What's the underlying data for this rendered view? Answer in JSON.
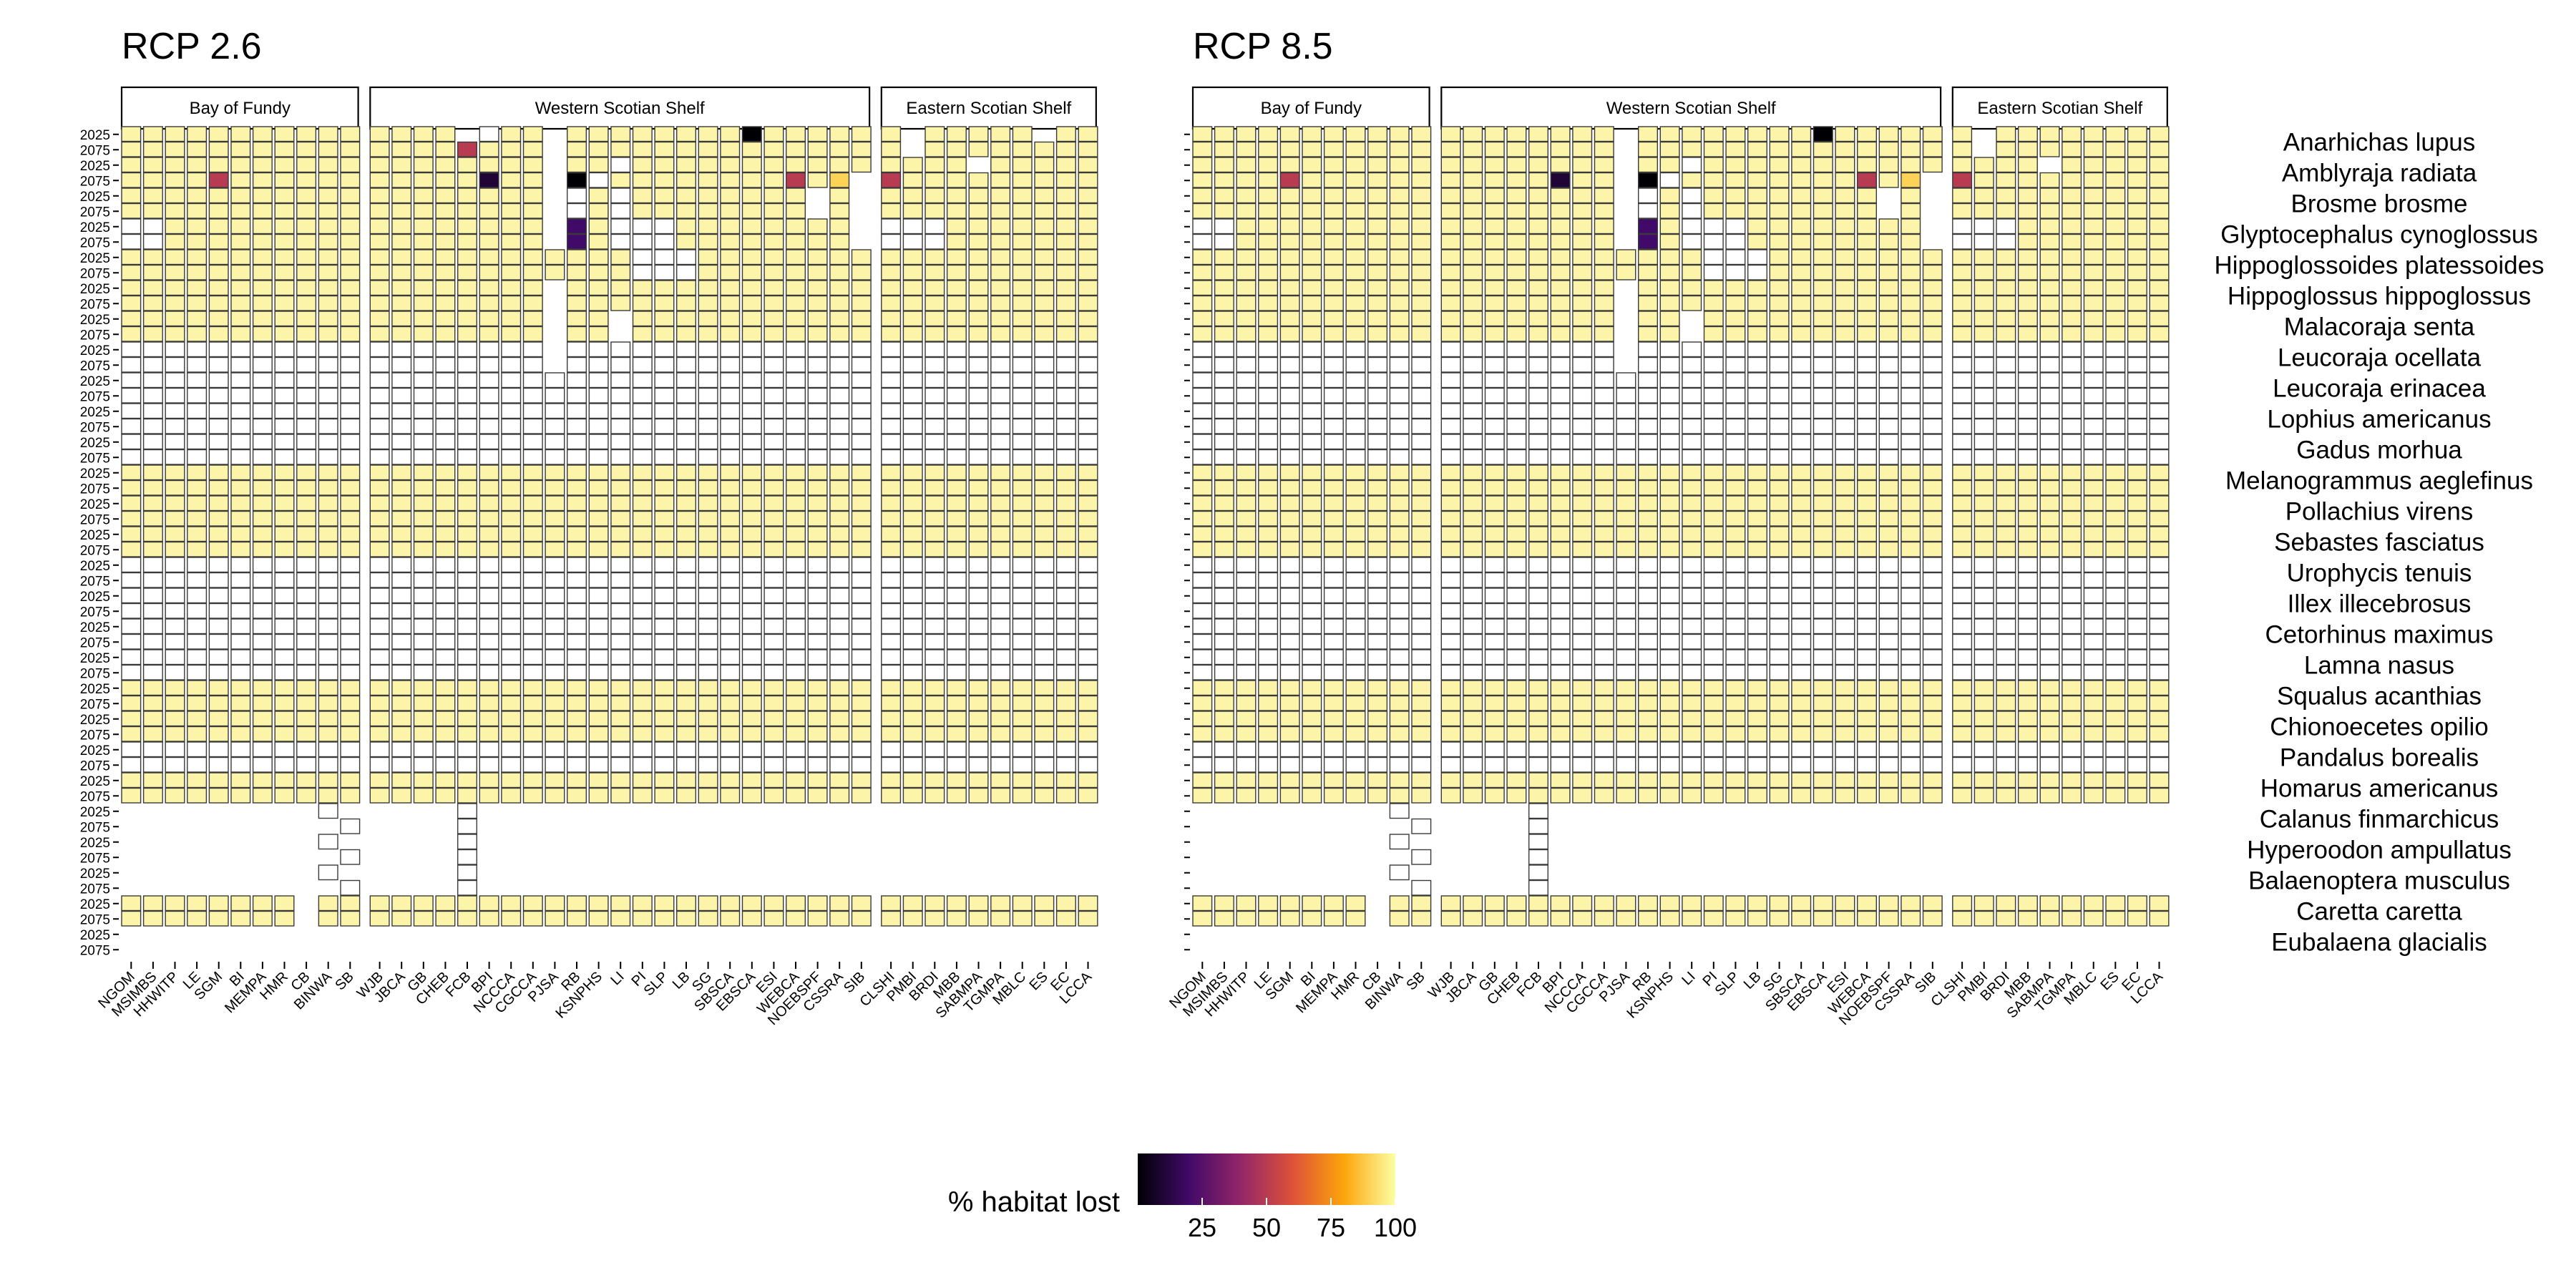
{
  "chart_data": {
    "type": "heatmap",
    "panels": [
      {
        "key": "rcp26",
        "title": "RCP 2.6"
      },
      {
        "key": "rcp85",
        "title": "RCP 8.5"
      }
    ],
    "regions": [
      {
        "name": "Bay of Fundy",
        "sites": [
          "NGOM",
          "MSIMBS",
          "HHWITP",
          "LE",
          "SGM",
          "BI",
          "MEMPA",
          "HMR",
          "CB",
          "BINWA",
          "SB"
        ]
      },
      {
        "name": "Western Scotian Shelf",
        "sites": [
          "WJB",
          "JBCA",
          "GB",
          "CHEB",
          "FCB",
          "BPI",
          "NCCCA",
          "CGCCA",
          "PJSA",
          "RB",
          "KSNPHS",
          "LI",
          "PI",
          "SLP",
          "LB",
          "SG",
          "SBSCA",
          "EBSCA",
          "ESI",
          "WEBCA",
          "NOEBSPF",
          "CSSRA",
          "SIB"
        ]
      },
      {
        "name": "Eastern Scotian Shelf",
        "sites": [
          "CLSHI",
          "PMBI",
          "BRDI",
          "MBB",
          "SABMPA",
          "TGMPA",
          "MBLC",
          "ES",
          "EC",
          "LCCA"
        ]
      }
    ],
    "years": [
      "2025",
      "2075"
    ],
    "species": [
      "Anarhichas lupus",
      "Amblyraja radiata",
      "Brosme brosme",
      "Glyptocephalus cynoglossus",
      "Hippoglossoides platessoides",
      "Hippoglossus hippoglossus",
      "Malacoraja senta",
      "Leucoraja ocellata",
      "Leucoraja erinacea",
      "Lophius americanus",
      "Gadus morhua",
      "Melanogrammus aeglefinus",
      "Pollachius virens",
      "Sebastes fasciatus",
      "Urophycis tenuis",
      "Illex illecebrosus",
      "Cetorhinus maximus",
      "Lamna nasus",
      "Squalus acanthias",
      "Chionoecetes opilio",
      "Pandalus borealis",
      "Homarus americanus",
      "Calanus finmarchicus",
      "Hyperoodon ampullatus",
      "Balaenoptera musculus",
      "Caretta caretta",
      "Eubalaena glacialis"
    ],
    "coding": {
      "present": "A = 100% habitat lost (pale yellow); digits 1-9 = percent/10 lost; 0 = near 0%",
      "no_data_fill": "W = recorded cell with no loss value (white)",
      "absent": "."
    },
    "legend": {
      "title": "% habitat lost",
      "ticks": [
        25,
        50,
        75,
        100
      ],
      "range": [
        0,
        100
      ],
      "stops": [
        "#000004",
        "#420a68",
        "#932667",
        "#dd513a",
        "#fca50a",
        "#fcffa4"
      ],
      "placement": "bottom-center"
    },
    "grids": {
      "rcp26": [
        [
          "AAAAAAAAAAA",
          "AAAA.WAA.AAAAAAAA0AAAAA",
          "A.AAAAA.AA"
        ],
        [
          "AAAAAAAAAAA",
          "AAAA5AAA.AAAAAAAAAAAAAA",
          "A.AAAAAAAA"
        ],
        [
          "AAAAAAAAAAA",
          "AAAAAAAA.AAWAAAAAAAAAAA",
          "AAAA.AAAAA"
        ],
        [
          "AAAA5AAAAAA",
          "AAAAA1AA.0WAAAAAAAA5A9.",
          "5AAAAAAAAA"
        ],
        [
          "AAAAAAAAAAA",
          "AAAAAAAA.WAWAAAAAAAA.A.",
          "AAAAAAAAAA"
        ],
        [
          "AAAAAAAAAAA",
          "AAAAAAAA.WAWAAAAAAAA.A.",
          "AAAAAAAAAA"
        ],
        [
          "WWAAAAAAAAA",
          "AAAAAAAA.2AWWWAAAAAAAA.",
          "WWWAAAAAAA"
        ],
        [
          "WWAAAAAAAAA",
          "AAAAAAAA.2AWWWAAAAAAAA.",
          "WWWAAAAAAA"
        ],
        [
          "AAAAAAAAAAA",
          "AAAAAAAAAAAAWWWAAAAAAAA",
          "AAAAAAAAAA"
        ],
        [
          "AAAAAAAAAAA",
          "AAAAAAAAAAAAWWWAAAAAAAA",
          "AAAAAAAAAA"
        ],
        [
          "AAAAAAAAAAA",
          "AAAAAAAA.AAAAAAAAAAAAAA",
          "AAAAAAAAAA"
        ],
        [
          "AAAAAAAAAAA",
          "AAAAAAAA.AAAAAAAAAAAAAA",
          "AAAAAAAAAA"
        ],
        [
          "AAAAAAAAAAA",
          "AAAAAAAA.AA.AAAAAAAAAAA",
          "AAAAAAAAAA"
        ],
        [
          "AAAAAAAAAAA",
          "AAAAAAAA.AA.AAAAAAAAAAA",
          "AAAAAAAAAA"
        ],
        [
          "WWWWWWWWWWW",
          "WWWWWWWW.WWWWWWWWWWWWWW",
          "WWWWWWWWWW"
        ],
        [
          "WWWWWWWWWWW",
          "WWWWWWWW.WWWWWWWWWWWWWW",
          "WWWWWWWWWW"
        ],
        [
          "WWWWWWWWWWW",
          "WWWWWWWWWWWWWWWWWWWWWWW",
          "WWWWWWWWWW"
        ],
        [
          "WWWWWWWWWWW",
          "WWWWWWWWWWWWWWWWWWWWWWW",
          "WWWWWWWWWW"
        ],
        [
          "WWWWWWWWWWW",
          "WWWWWWWWWWWWWWWWWWWWWWW",
          "WWWWWWWWWW"
        ],
        [
          "WWWWWWWWWWW",
          "WWWWWWWWWWWWWWWWWWWWWWW",
          "WWWWWWWWWW"
        ],
        [
          "WWWWWWWWWWW",
          "WWWWWWWWWWWWWWWWWWWWWWW",
          "WWWWWWWWWW"
        ],
        [
          "WWWWWWWWWWW",
          "WWWWWWWWWWWWWWWWWWWWWWW",
          "WWWWWWWWWW"
        ],
        [
          "AAAAAAAAAAA",
          "AAAAAAAAAAAAAAAAAAAAAAA",
          "AAAAAAAAAA"
        ],
        [
          "AAAAAAAAAAA",
          "AAAAAAAAAAAAAAAAAAAAAAA",
          "AAAAAAAAAA"
        ],
        [
          "AAAAAAAAAAA",
          "AAAAAAAAAAAAAAAAAAAAAAA",
          "AAAAAAAAAA"
        ],
        [
          "AAAAAAAAAAA",
          "AAAAAAAAAAAAAAAAAAAAAAA",
          "AAAAAAAAAA"
        ],
        [
          "AAAAAAAAAAA",
          "AAAAAAAAAAAAAAAAAAAAAAA",
          "AAAAAAAAAA"
        ],
        [
          "AAAAAAAAAAA",
          "AAAAAAAAAAAAAAAAAAAAAAA",
          "AAAAAAAAAA"
        ],
        [
          "WWWWWWWWWWW",
          "WWWWWWWWWWWWWWWWWWWWWWW",
          "WWWWWWWWWW"
        ],
        [
          "WWWWWWWWWWW",
          "WWWWWWWWWWWWWWWWWWWWWWW",
          "WWWWWWWWWW"
        ],
        [
          "WWWWWWWWWWW",
          "WWWWWWWWWWWWWWWWWWWWWWW",
          "WWWWWWWWWW"
        ],
        [
          "WWWWWWWWWWW",
          "WWWWWWWWWWWWWWWWWWWWWWW",
          "WWWWWWWWWW"
        ],
        [
          "WWWWWWWWWWW",
          "WWWWWWWWWWWWWWWWWWWWWWW",
          "WWWWWWWWWW"
        ],
        [
          "WWWWWWWWWWW",
          "WWWWWWWWWWWWWWWWWWWWWWW",
          "WWWWWWWWWW"
        ],
        [
          "WWWWWWWWWWW",
          "WWWWWWWWWWWWWWWWWWWWWWW",
          "WWWWWWWWWW"
        ],
        [
          "WWWWWWWWWWW",
          "WWWWWWWWWWWWWWWWWWWWWWW",
          "WWWWWWWWWW"
        ],
        [
          "AAAAAAAAAAA",
          "AAAAAAAAAAAAAAAAAAAAAAA",
          "AAAAAAAAAA"
        ],
        [
          "AAAAAAAAAAA",
          "AAAAAAAAAAAAAAAAAAAAAAA",
          "AAAAAAAAAA"
        ],
        [
          "AAAAAAAAAAA",
          "AAAAAAAAAAAAAAAAAAAAAAA",
          "AAAAAAAAAA"
        ],
        [
          "AAAAAAAAAAA",
          "AAAAAAAAAAAAAAAAAAAAAAA",
          "AAAAAAAAAA"
        ],
        [
          "WWWWWWWWWWW",
          "WWWWWWWWWWWWWWWWWWWWWWW",
          "WWWWWWWWWW"
        ],
        [
          "WWWWWWWWWWW",
          "WWWWWWWWWWWWWWWWWWWWWWW",
          "WWWWWWWWWW"
        ],
        [
          "AAAAAAAAAAA",
          "AAAAAAAAAAAAAAAAAAAAAAA",
          "AAAAAAAAAA"
        ],
        [
          "AAAAAAAAAAA",
          "AAAAAAAAAAAAAAAAAAAAAAA",
          "AAAAAAAAAA"
        ],
        [
          ".........W.",
          "....W..................",
          ".........."
        ],
        [
          "..........W",
          "....W..................",
          ".........."
        ],
        [
          ".........W.",
          "....W..................",
          ".........."
        ],
        [
          "..........W",
          "....W..................",
          ".........."
        ],
        [
          ".........W.",
          "....W..................",
          ".........."
        ],
        [
          "..........W",
          "....W..................",
          ".........."
        ],
        [
          "AAAAAAAA.AA",
          "AAAAAAAAAAAAAAAAAAAAAAA",
          "AAAAAAAAAA"
        ],
        [
          "AAAAAAAA.AA",
          "AAAAAAAAAAAAAAAAAAAAAAA",
          "AAAAAAAAAA"
        ]
      ],
      "rcp85": [
        [
          "AAAAAAAAAAA",
          "AAAAAAAA.AAAAAAAA0AAAAA",
          "A.AAAAAAAA"
        ],
        [
          "AAAAAAAAAAA",
          "AAAAAAAA.AAAAAAAAAAAAAA",
          "A.AAAAAAAA"
        ],
        [
          "AAAAAAAAAAA",
          "AAAAAAAA.AAWAAAAAAAAAAA",
          "AAAA.AAAAA"
        ],
        [
          "AAAA5AAAAAA",
          "AAAAA1AA.0WAAAAAAAA5A9.",
          "5AAAAAAAAA"
        ],
        [
          "AAAAAAAAAAA",
          "AAAAAAAA.WAWAAAAAAAA.A.",
          "AAAAAAAAAA"
        ],
        [
          "AAAAAAAAAAA",
          "AAAAAAAA.WAWAAAAAAAA.A.",
          "AAAAAAAAAA"
        ],
        [
          "WWAAAAAAAAA",
          "AAAAAAAA.2AWWWAAAAAAAA.",
          "WWWAAAAAAA"
        ],
        [
          "WWAAAAAAAAA",
          "AAAAAAAA.2AWWWAAAAAAAA.",
          "WWWAAAAAAA"
        ],
        [
          "AAAAAAAAAAA",
          "AAAAAAAAAAAAWWWAAAAAAAA",
          "AAAAAAAAAA"
        ],
        [
          "AAAAAAAAAAA",
          "AAAAAAAAAAAAWWWAAAAAAAA",
          "AAAAAAAAAA"
        ],
        [
          "AAAAAAAAAAA",
          "AAAAAAAA.AAAAAAAAAAAAAA",
          "AAAAAAAAAA"
        ],
        [
          "AAAAAAAAAAA",
          "AAAAAAAA.AAAAAAAAAAAAAA",
          "AAAAAAAAAA"
        ],
        [
          "AAAAAAAAAAA",
          "AAAAAAAA.AA.AAAAAAAAAAA",
          "AAAAAAAAAA"
        ],
        [
          "AAAAAAAAAAA",
          "AAAAAAAA.AA.AAAAAAAAAAA",
          "AAAAAAAAAA"
        ],
        [
          "WWWWWWWWWWW",
          "WWWWWWWW.WWWWWWWWWWWWWW",
          "WWWWWWWWWW"
        ],
        [
          "WWWWWWWWWWW",
          "WWWWWWWW.WWWWWWWWWWWWWW",
          "WWWWWWWWWW"
        ],
        [
          "WWWWWWWWWWW",
          "WWWWWWWWWWWWWWWWWWWWWWW",
          "WWWWWWWWWW"
        ],
        [
          "WWWWWWWWWWW",
          "WWWWWWWWWWWWWWWWWWWWWWW",
          "WWWWWWWWWW"
        ],
        [
          "WWWWWWWWWWW",
          "WWWWWWWWWWWWWWWWWWWWWWW",
          "WWWWWWWWWW"
        ],
        [
          "WWWWWWWWWWW",
          "WWWWWWWWWWWWWWWWWWWWWWW",
          "WWWWWWWWWW"
        ],
        [
          "WWWWWWWWWWW",
          "WWWWWWWWWWWWWWWWWWWWWWW",
          "WWWWWWWWWW"
        ],
        [
          "WWWWWWWWWWW",
          "WWWWWWWWWWWWWWWWWWWWWWW",
          "WWWWWWWWWW"
        ],
        [
          "AAAAAAAAAAA",
          "AAAAAAAAAAAAAAAAAAAAAAA",
          "AAAAAAAAAA"
        ],
        [
          "AAAAAAAAAAA",
          "AAAAAAAAAAAAAAAAAAAAAAA",
          "AAAAAAAAAA"
        ],
        [
          "AAAAAAAAAAA",
          "AAAAAAAAAAAAAAAAAAAAAAA",
          "AAAAAAAAAA"
        ],
        [
          "AAAAAAAAAAA",
          "AAAAAAAAAAAAAAAAAAAAAAA",
          "AAAAAAAAAA"
        ],
        [
          "AAAAAAAAAAA",
          "AAAAAAAAAAAAAAAAAAAAAAA",
          "AAAAAAAAAA"
        ],
        [
          "AAAAAAAAAAA",
          "AAAAAAAAAAAAAAAAAAAAAAA",
          "AAAAAAAAAA"
        ],
        [
          "WWWWWWWWWWW",
          "WWWWWWWWWWWWWWWWWWWWWWW",
          "WWWWWWWWWW"
        ],
        [
          "WWWWWWWWWWW",
          "WWWWWWWWWWWWWWWWWWWWWWW",
          "WWWWWWWWWW"
        ],
        [
          "WWWWWWWWWWW",
          "WWWWWWWWWWWWWWWWWWWWWWW",
          "WWWWWWWWWW"
        ],
        [
          "WWWWWWWWWWW",
          "WWWWWWWWWWWWWWWWWWWWWWW",
          "WWWWWWWWWW"
        ],
        [
          "WWWWWWWWWWW",
          "WWWWWWWWWWWWWWWWWWWWWWW",
          "WWWWWWWWWW"
        ],
        [
          "WWWWWWWWWWW",
          "WWWWWWWWWWWWWWWWWWWWWWW",
          "WWWWWWWWWW"
        ],
        [
          "WWWWWWWWWWW",
          "WWWWWWWWWWWWWWWWWWWWWWW",
          "WWWWWWWWWW"
        ],
        [
          "WWWWWWWWWWW",
          "WWWWWWWWWWWWWWWWWWWWWWW",
          "WWWWWWWWWW"
        ],
        [
          "AAAAAAAAAAA",
          "AAAAAAAAAAAAAAAAAAAAAAA",
          "AAAAAAAAAA"
        ],
        [
          "AAAAAAAAAAA",
          "AAAAAAAAAAAAAAAAAAAAAAA",
          "AAAAAAAAAA"
        ],
        [
          "AAAAAAAAAAA",
          "AAAAAAAAAAAAAAAAAAAAAAA",
          "AAAAAAAAAA"
        ],
        [
          "AAAAAAAAAAA",
          "AAAAAAAAAAAAAAAAAAAAAAA",
          "AAAAAAAAAA"
        ],
        [
          "WWWWWWWWWWW",
          "WWWWWWWWWWWWWWWWWWWWWWW",
          "WWWWWWWWWW"
        ],
        [
          "WWWWWWWWWWW",
          "WWWWWWWWWWWWWWWWWWWWWWW",
          "WWWWWWWWWW"
        ],
        [
          "AAAAAAAAAAA",
          "AAAAAAAAAAAAAAAAAAAAAAA",
          "AAAAAAAAAA"
        ],
        [
          "AAAAAAAAAAA",
          "AAAAAAAAAAAAAAAAAAAAAAA",
          "AAAAAAAAAA"
        ],
        [
          ".........W.",
          "....W..................",
          ".........."
        ],
        [
          "..........W",
          "....W..................",
          ".........."
        ],
        [
          ".........W.",
          "....W..................",
          ".........."
        ],
        [
          "..........W",
          "....W..................",
          ".........."
        ],
        [
          ".........W.",
          "....W..................",
          ".........."
        ],
        [
          "..........W",
          "....W..................",
          ".........."
        ],
        [
          "AAAAAAAA.AA",
          "AAAAAAAAAAAAAAAAAAAAAAA",
          "AAAAAAAAAA"
        ],
        [
          "AAAAAAAA.AA",
          "AAAAAAAAAAAAAAAAAAAAAAA",
          "AAAAAAAAAA"
        ]
      ]
    }
  }
}
